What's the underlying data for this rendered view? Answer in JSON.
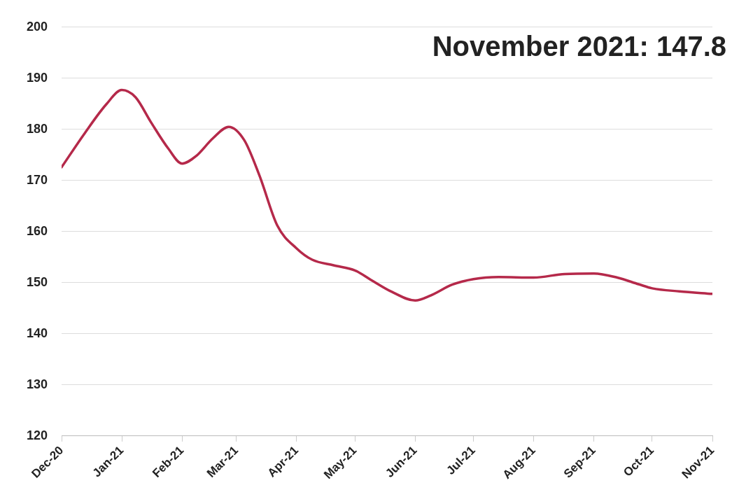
{
  "chart_data": {
    "type": "line",
    "annotations": [
      "November 2021: 147.8"
    ],
    "x": [
      "2020-12-01",
      "2020-12-13",
      "2020-12-24",
      "2021-01-01",
      "2021-01-08",
      "2021-01-16",
      "2021-01-25",
      "2021-02-01",
      "2021-02-08",
      "2021-02-17",
      "2021-02-25",
      "2021-03-05",
      "2021-03-13",
      "2021-03-22",
      "2021-04-01",
      "2021-04-09",
      "2021-04-20",
      "2021-05-01",
      "2021-05-09",
      "2021-05-20",
      "2021-06-01",
      "2021-06-09",
      "2021-06-20",
      "2021-07-01",
      "2021-07-14",
      "2021-08-01",
      "2021-08-17",
      "2021-09-01",
      "2021-09-13",
      "2021-09-24",
      "2021-10-01",
      "2021-10-15",
      "2021-11-01"
    ],
    "series": [
      {
        "color": "#b5294a",
        "values": [
          172.6,
          179.3,
          184.9,
          187.7,
          186.3,
          181.4,
          176.2,
          173.3,
          174.7,
          178.3,
          180.5,
          177.9,
          170.8,
          161.2,
          156.7,
          154.5,
          153.4,
          152.4,
          150.6,
          148.2,
          146.5,
          147.5,
          149.6,
          150.7,
          151.1,
          151.0,
          151.7,
          151.8,
          151.0,
          149.7,
          148.9,
          148.3,
          147.8
        ]
      }
    ],
    "xlim": [
      "2020-12-01",
      "2021-11-01"
    ],
    "xticks": [
      {
        "value": "2020-12-01",
        "label": "Dec-20"
      },
      {
        "value": "2021-01-01",
        "label": "Jan-21"
      },
      {
        "value": "2021-02-01",
        "label": "Feb-21"
      },
      {
        "value": "2021-03-01",
        "label": "Mar-21"
      },
      {
        "value": "2021-04-01",
        "label": "Apr-21"
      },
      {
        "value": "2021-05-01",
        "label": "May-21"
      },
      {
        "value": "2021-06-01",
        "label": "Jun-21"
      },
      {
        "value": "2021-07-01",
        "label": "Jul-21"
      },
      {
        "value": "2021-08-01",
        "label": "Aug-21"
      },
      {
        "value": "2021-09-01",
        "label": "Sep-21"
      },
      {
        "value": "2021-10-01",
        "label": "Oct-21"
      },
      {
        "value": "2021-11-01",
        "label": "Nov-21"
      }
    ],
    "ylim": [
      120,
      200
    ],
    "yticks": [
      120,
      130,
      140,
      150,
      160,
      170,
      180,
      190,
      200
    ],
    "grid": "y",
    "legend": false,
    "marker": "none",
    "line_style": "solid"
  }
}
